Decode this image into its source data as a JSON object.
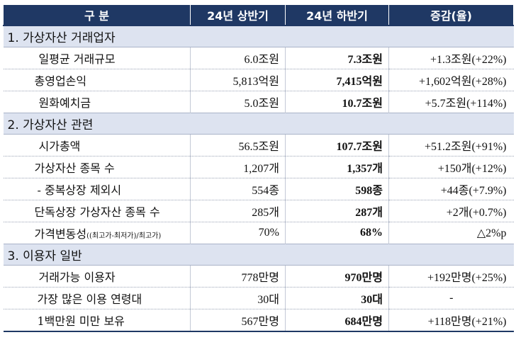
{
  "header": {
    "col0": "구 분",
    "col1": "24년 상반기",
    "col2": "24년 하반기",
    "col3": "증감(율)"
  },
  "sections": [
    {
      "title": "1. 가상자산 거래업자",
      "rows": [
        {
          "label": "일평균 거래규모",
          "indent": 50,
          "h1": "6.0조원",
          "h2": "7.3조원",
          "chg": "+1.3조원(+22%)"
        },
        {
          "label": "총영업손익",
          "indent": 44,
          "h1": "5,813억원",
          "h2": "7,415억원",
          "chg": "+1,602억원(+28%)"
        },
        {
          "label": "원화예치금",
          "indent": 50,
          "h1": "5.0조원",
          "h2": "10.7조원",
          "chg": "+5.7조원(+114%)"
        }
      ]
    },
    {
      "title": "2. 가상자산 관련",
      "rows": [
        {
          "label": "시가총액",
          "indent": 50,
          "h1": "56.5조원",
          "h2": "107.7조원",
          "chg": "+51.2조원(+91%)"
        },
        {
          "label": "가상자산 종목 수",
          "indent": 44,
          "h1": "1,207개",
          "h2": "1,357개",
          "chg": "+150개(+12%)"
        },
        {
          "label": " - 중복상장 제외시",
          "indent": 48,
          "h1": "554종",
          "h2": "598종",
          "chg": "+44종(+7.9%)"
        },
        {
          "label": "단독상장 가상자산 종목 수",
          "indent": 44,
          "h1": "285개",
          "h2": "287개",
          "chg": "+2개(+0.7%)"
        },
        {
          "label": "가격변동성",
          "label_small": "((최고가-최저가)/최고가)",
          "indent": 44,
          "h1": "70%",
          "h2": "68%",
          "chg": "△2%p"
        }
      ]
    },
    {
      "title": "3. 이용자 일반",
      "rows": [
        {
          "label": "거래가능 이용자",
          "indent": 50,
          "h1": "778만명",
          "h2": "970만명",
          "chg": "+192만명(+25%)"
        },
        {
          "label": "가장 많은 이용 연령대",
          "indent": 48,
          "h1": "30대",
          "h2": "30대",
          "chg": "-",
          "chg_center": true
        },
        {
          "label": "1백만원 미만 보유",
          "indent": 48,
          "h1": "567만명",
          "h2": "684만명",
          "chg": "+118만명(+21%)"
        }
      ]
    }
  ]
}
